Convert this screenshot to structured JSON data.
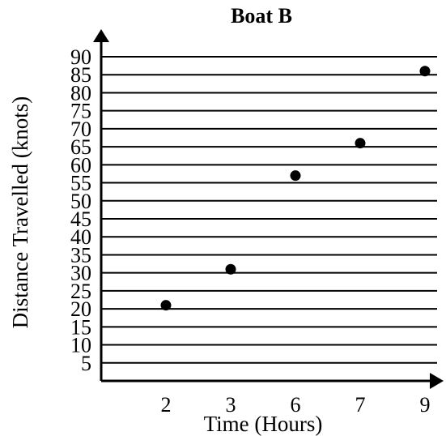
{
  "chart_data": {
    "type": "scatter",
    "title": "Boat B",
    "xlabel": "Time (Hours)",
    "ylabel": "Distance Travelled (knots)",
    "x_categories": [
      "2",
      "3",
      "6",
      "7",
      "9"
    ],
    "y_ticks": [
      "5",
      "10",
      "15",
      "20",
      "25",
      "30",
      "35",
      "40",
      "45",
      "50",
      "55",
      "60",
      "65",
      "70",
      "75",
      "80",
      "85",
      "90"
    ],
    "ylim": [
      0,
      90
    ],
    "grid": "horizontal",
    "series": [
      {
        "points": [
          {
            "x": "2",
            "y": 21
          },
          {
            "x": "3",
            "y": 31
          },
          {
            "x": "6",
            "y": 57
          },
          {
            "x": "7",
            "y": 66
          },
          {
            "x": "9",
            "y": 86
          }
        ]
      }
    ],
    "colors": {
      "marker": "#000000",
      "axis": "#000000",
      "grid": "#000000"
    }
  }
}
